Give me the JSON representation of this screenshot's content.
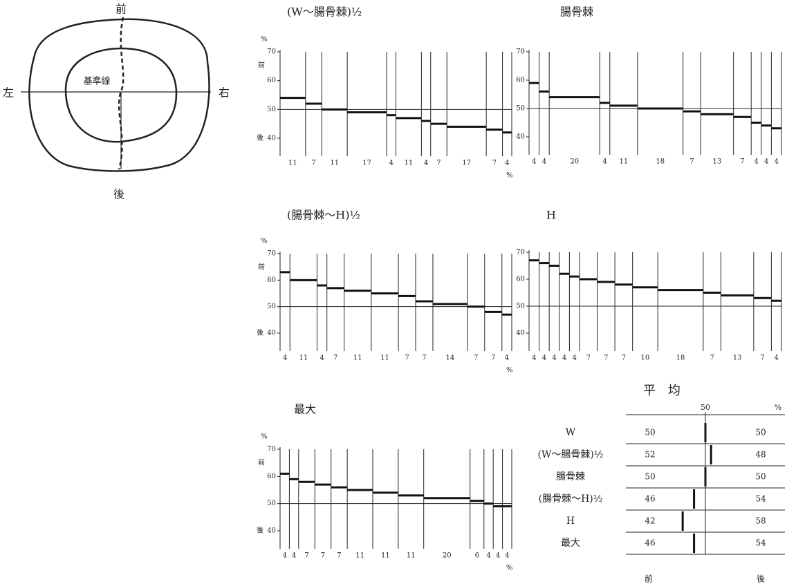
{
  "diagram": {
    "front": "前",
    "back": "後",
    "left": "左",
    "right": "右",
    "baseline": "基準線"
  },
  "chart_data": [
    {
      "type": "step",
      "title": "(W～腸骨棘)½",
      "y_unit": "%",
      "top_label": "前",
      "bottom_label": "後",
      "x_unit": "%",
      "widths": [
        11,
        7,
        11,
        17,
        4,
        11,
        4,
        7,
        17,
        7,
        4
      ],
      "values": [
        54,
        52,
        50,
        49,
        48,
        47,
        46,
        45,
        44,
        43,
        42
      ],
      "ylim": [
        40,
        70
      ],
      "yticks": [
        40,
        50,
        60,
        70
      ],
      "ref_line": 50
    },
    {
      "type": "step",
      "title": "腸骨棘",
      "widths": [
        4,
        4,
        20,
        4,
        11,
        18,
        7,
        13,
        7,
        4,
        4,
        4
      ],
      "values": [
        59,
        56,
        54,
        52,
        51,
        50,
        49,
        48,
        47,
        45,
        44,
        43
      ],
      "ylim": [
        40,
        70
      ],
      "yticks": [
        40,
        50,
        60,
        70
      ],
      "ref_line": 50
    },
    {
      "type": "step",
      "title": "(腸骨棘～H)½",
      "y_unit": "%",
      "top_label": "前",
      "bottom_label": "後",
      "x_unit": "%",
      "widths": [
        4,
        11,
        4,
        7,
        11,
        11,
        7,
        7,
        14,
        7,
        7,
        4
      ],
      "values": [
        63,
        60,
        58,
        57,
        56,
        55,
        54,
        52,
        51,
        50,
        48,
        47
      ],
      "ylim": [
        40,
        70
      ],
      "yticks": [
        40,
        50,
        60,
        70
      ],
      "ref_line": 50
    },
    {
      "type": "step",
      "title": "H",
      "widths": [
        4,
        4,
        4,
        4,
        4,
        7,
        7,
        7,
        10,
        18,
        7,
        13,
        7,
        4
      ],
      "values": [
        67,
        66,
        65,
        62,
        61,
        60,
        59,
        58,
        57,
        56,
        55,
        54,
        53,
        52
      ],
      "ylim": [
        40,
        70
      ],
      "yticks": [
        40,
        50,
        60,
        70
      ],
      "ref_line": 50
    },
    {
      "type": "step",
      "title": "最大",
      "y_unit": "%",
      "top_label": "前",
      "bottom_label": "後",
      "x_unit": "%",
      "widths": [
        4,
        4,
        7,
        7,
        7,
        11,
        11,
        11,
        20,
        6,
        4,
        4,
        4
      ],
      "values": [
        61,
        59,
        58,
        57,
        56,
        55,
        54,
        53,
        52,
        51,
        50,
        49,
        49
      ],
      "ylim": [
        40,
        70
      ],
      "yticks": [
        40,
        50,
        60,
        70
      ],
      "ref_line": 50
    }
  ],
  "average": {
    "title": "平 均",
    "unit": "%",
    "front_label": "前",
    "back_label": "後",
    "xlim": [
      22,
      78
    ],
    "xticks": [
      50
    ],
    "rows": [
      {
        "label": "W",
        "front": 50,
        "back": 50
      },
      {
        "label": "(W～腸骨棘)½",
        "front": 52,
        "back": 48
      },
      {
        "label": "腸骨棘",
        "front": 50,
        "back": 50
      },
      {
        "label": "(腸骨棘～H)½",
        "front": 46,
        "back": 54
      },
      {
        "label": "H",
        "front": 42,
        "back": 58
      },
      {
        "label": "最大",
        "front": 46,
        "back": 54
      }
    ]
  }
}
